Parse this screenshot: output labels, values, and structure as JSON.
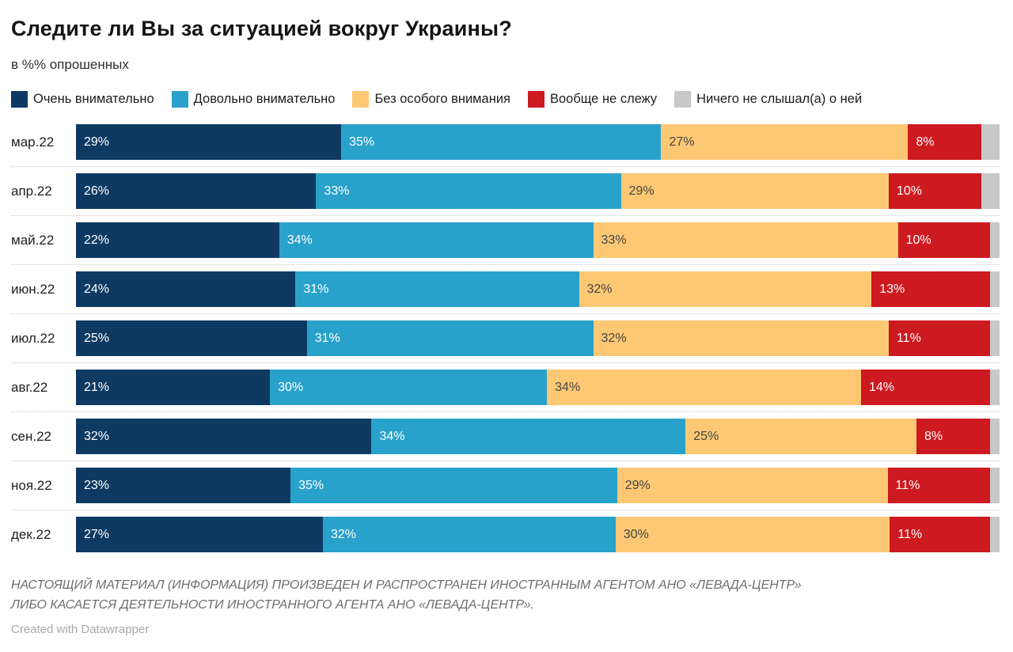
{
  "chart_data": {
    "type": "bar",
    "variant": "horizontal-stacked",
    "title": "Следите ли Вы за ситуацией вокруг Украины?",
    "subtitle": "в %% опрошенных",
    "value_suffix": "%",
    "categories": [
      "мар.22",
      "апр.22",
      "май.22",
      "июн.22",
      "июл.22",
      "авг.22",
      "сен.22",
      "ноя.22",
      "дек.22"
    ],
    "series": [
      {
        "name": "Очень внимательно",
        "color": "#0e3a62",
        "label_color": "#ffffff",
        "show_labels": true,
        "values": [
          29,
          26,
          22,
          24,
          25,
          21,
          32,
          23,
          27
        ]
      },
      {
        "name": "Довольно внимательно",
        "color": "#29a2cb",
        "label_color": "#ffffff",
        "show_labels": true,
        "values": [
          35,
          33,
          34,
          31,
          31,
          30,
          34,
          35,
          32
        ]
      },
      {
        "name": "Без особого внимания",
        "color": "#fcc873",
        "label_color": "#454545",
        "show_labels": true,
        "values": [
          27,
          29,
          33,
          32,
          32,
          34,
          25,
          29,
          30
        ]
      },
      {
        "name": "Вообще не слежу",
        "color": "#cd1a20",
        "label_color": "#ffffff",
        "show_labels": true,
        "values": [
          8,
          10,
          10,
          13,
          11,
          14,
          8,
          11,
          11
        ]
      },
      {
        "name": "Ничего не слышал(а) о ней",
        "color": "#c8c8c8",
        "label_color": "#454545",
        "show_labels": false,
        "values": [
          2,
          2,
          1,
          1,
          1,
          1,
          1,
          1,
          1
        ]
      }
    ],
    "legend_position": "top",
    "axis_ticks": "none",
    "grid": false
  },
  "footer": {
    "disclaimer_line1": "НАСТОЯЩИЙ МАТЕРИАЛ (ИНФОРМАЦИЯ) ПРОИЗВЕДЕН И РАСПРОСТРАНЕН ИНОСТРАННЫМ АГЕНТОМ АНО «ЛЕВАДА-ЦЕНТР»",
    "disclaimer_line2": "ЛИБО КАСАЕТСЯ ДЕЯТЕЛЬНОСТИ ИНОСТРАННОГО АГЕНТА АНО «ЛЕВАДА-ЦЕНТР».",
    "credit": "Created with Datawrapper"
  }
}
